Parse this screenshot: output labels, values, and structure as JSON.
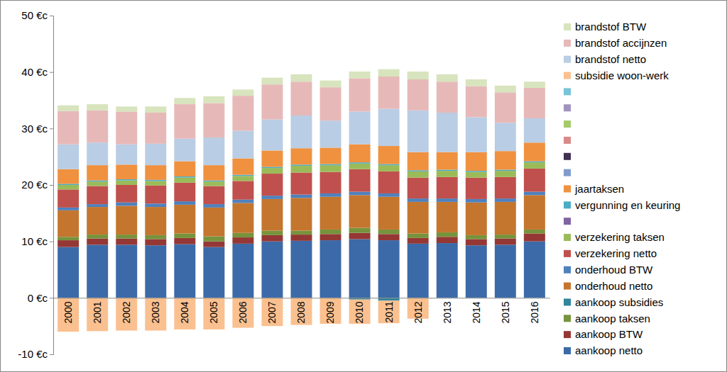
{
  "chart_data": {
    "type": "bar",
    "stacked": true,
    "grid": false,
    "legend": "right",
    "categories": [
      "2000",
      "2001",
      "2002",
      "2003",
      "2004",
      "2005",
      "2006",
      "2007",
      "2008",
      "2009",
      "2010",
      "2011",
      "2012",
      "2013",
      "2014",
      "2015",
      "2016"
    ],
    "ylim": [
      -10,
      50
    ],
    "yticks": [
      {
        "value": -10,
        "label": "-10 €c"
      },
      {
        "value": 0,
        "label": "0 €c"
      },
      {
        "value": 10,
        "label": "10 €c"
      },
      {
        "value": 20,
        "label": "20 €c"
      },
      {
        "value": 30,
        "label": "30 €c"
      },
      {
        "value": 40,
        "label": "40 €c"
      },
      {
        "value": 50,
        "label": "50 €c"
      }
    ],
    "series": [
      {
        "name": "aankoop netto",
        "color": "#3c6aa8",
        "values": [
          9.0,
          9.4,
          9.4,
          9.3,
          9.5,
          9.0,
          9.6,
          10.0,
          10.1,
          10.2,
          10.4,
          10.2,
          9.6,
          9.7,
          9.3,
          9.4,
          10.0
        ]
      },
      {
        "name": "aankoop BTW",
        "color": "#953735",
        "values": [
          1.2,
          1.1,
          1.1,
          1.1,
          1.1,
          1.0,
          1.1,
          1.1,
          1.1,
          1.1,
          1.1,
          1.1,
          1.0,
          1.1,
          1.1,
          1.1,
          1.4
        ]
      },
      {
        "name": "aankoop taksen",
        "color": "#77933c",
        "values": [
          0.6,
          0.7,
          0.7,
          0.7,
          0.8,
          0.9,
          0.8,
          0.8,
          0.7,
          0.8,
          0.9,
          0.8,
          0.8,
          0.8,
          0.7,
          0.7,
          0.7
        ]
      },
      {
        "name": "aankoop subsidies",
        "color": "#31859c",
        "values": [
          0,
          0,
          0,
          0,
          0,
          0,
          0,
          0,
          0,
          0,
          -0.3,
          -0.5,
          0,
          0,
          0,
          0,
          0
        ]
      },
      {
        "name": "onderhoud netto",
        "color": "#c4762e",
        "values": [
          4.7,
          4.9,
          5.1,
          5.0,
          5.1,
          5.1,
          5.3,
          5.6,
          5.8,
          5.8,
          5.8,
          5.8,
          5.6,
          5.4,
          5.8,
          5.8,
          6.1
        ]
      },
      {
        "name": "onderhoud BTW",
        "color": "#4f81bd",
        "values": [
          0.5,
          0.5,
          0.6,
          0.6,
          0.6,
          0.6,
          0.6,
          0.6,
          0.6,
          0.6,
          0.6,
          0.6,
          0.6,
          0.6,
          0.6,
          0.6,
          0.6
        ]
      },
      {
        "name": "verzekering netto",
        "color": "#c0504d",
        "values": [
          3.2,
          3.2,
          3.1,
          3.2,
          3.3,
          3.2,
          3.3,
          3.9,
          3.9,
          3.8,
          4.0,
          3.9,
          3.7,
          3.8,
          3.8,
          3.8,
          4.1
        ]
      },
      {
        "name": "verzekering taksen",
        "color": "#9bbb59",
        "values": [
          0.8,
          0.8,
          0.8,
          0.8,
          0.9,
          0.8,
          0.9,
          1.0,
          1.2,
          1.2,
          1.0,
          1.1,
          1.1,
          1.1,
          1.0,
          1.1,
          1.1
        ]
      },
      {
        "name": null,
        "color": "#8064a2",
        "values": [
          0,
          0,
          0,
          0,
          0,
          0,
          0,
          0,
          0,
          0,
          0,
          0,
          0,
          0,
          0,
          0,
          0
        ]
      },
      {
        "name": "vergunning en keuring",
        "color": "#4bacc6",
        "values": [
          0.2,
          0.2,
          0.2,
          0.2,
          0.2,
          0.2,
          0.2,
          0.2,
          0.2,
          0.2,
          0.2,
          0.2,
          0.2,
          0.2,
          0.2,
          0.2,
          0.2
        ]
      },
      {
        "name": "jaartaksen",
        "color": "#f0913f",
        "values": [
          2.6,
          2.7,
          2.6,
          2.6,
          2.7,
          2.7,
          2.9,
          2.9,
          2.9,
          2.9,
          3.2,
          3.2,
          3.2,
          3.1,
          3.3,
          3.3,
          3.3
        ]
      },
      {
        "name": null,
        "color": "#7f9ccb",
        "values": [
          0,
          0,
          0,
          0,
          0,
          0,
          0,
          0,
          0,
          0,
          0,
          0,
          0,
          0,
          0,
          0,
          0
        ]
      },
      {
        "name": null,
        "color": "#403152",
        "values": [
          0,
          0,
          0,
          0,
          0,
          0,
          0,
          0,
          0,
          0,
          0,
          0,
          0,
          0,
          0,
          0,
          0
        ]
      },
      {
        "name": null,
        "color": "#d98a89",
        "values": [
          0,
          0,
          0,
          0,
          0,
          0,
          0,
          0,
          0,
          0,
          0,
          0,
          0,
          0,
          0,
          0,
          0
        ]
      },
      {
        "name": null,
        "color": "#a6c96a",
        "values": [
          0,
          0,
          0,
          0,
          0,
          0,
          0,
          0,
          0,
          0,
          0,
          0,
          0,
          0,
          0,
          0,
          0
        ]
      },
      {
        "name": null,
        "color": "#a193bf",
        "values": [
          0,
          0,
          0,
          0,
          0,
          0,
          0,
          0,
          0,
          0,
          0,
          0,
          0,
          0,
          0,
          0,
          0
        ]
      },
      {
        "name": null,
        "color": "#78c4d8",
        "values": [
          0,
          0,
          0,
          0,
          0,
          0,
          0,
          0,
          0,
          0,
          0,
          0,
          0,
          0,
          0,
          0,
          0
        ]
      },
      {
        "name": "subsidie woon-werk",
        "color": "#fac090",
        "values": [
          -6.0,
          -5.9,
          -5.8,
          -5.8,
          -5.6,
          -5.6,
          -5.3,
          -5.0,
          -4.8,
          -4.6,
          -4.3,
          -4.0,
          -3.7,
          0,
          0,
          0,
          0
        ]
      },
      {
        "name": "brandstof netto",
        "color": "#b9cde5",
        "values": [
          4.4,
          4.0,
          3.6,
          3.8,
          4.0,
          4.9,
          4.9,
          5.5,
          5.8,
          4.8,
          5.8,
          6.6,
          7.4,
          7.0,
          6.2,
          5.0,
          4.3
        ]
      },
      {
        "name": "brandstof accijnzen",
        "color": "#e6b9b8",
        "values": [
          5.9,
          5.7,
          5.8,
          5.5,
          6.1,
          6.1,
          6.2,
          6.2,
          6.0,
          5.9,
          5.9,
          5.7,
          5.5,
          5.5,
          5.5,
          5.4,
          5.4
        ]
      },
      {
        "name": "brandstof BTW",
        "color": "#d7e4bd",
        "values": [
          1.0,
          1.1,
          0.9,
          1.1,
          1.1,
          1.2,
          1.1,
          1.2,
          1.3,
          1.2,
          1.2,
          1.3,
          1.4,
          1.3,
          1.2,
          1.2,
          1.1
        ]
      }
    ]
  }
}
